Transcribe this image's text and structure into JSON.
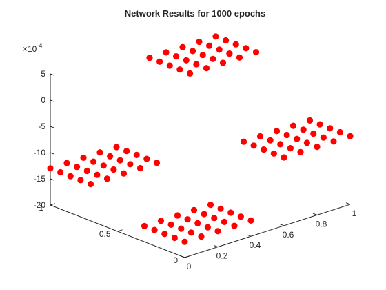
{
  "chart_data": {
    "type": "scatter",
    "title": "Network Results for 1000 epochs",
    "xlabel": "",
    "ylabel": "",
    "zlabel": "",
    "z_exponent_label": "×10",
    "z_exponent_power": "-4",
    "marker_color": "#ff0000",
    "xlim": [
      0,
      1
    ],
    "ylim": [
      0,
      1
    ],
    "zlim": [
      -20,
      5
    ],
    "x_ticks": [
      "0",
      "0.2",
      "0.4",
      "0.6",
      "0.8",
      "1"
    ],
    "x_tick_values": [
      0,
      0.2,
      0.4,
      0.6,
      0.8,
      1
    ],
    "y_ticks": [
      "0",
      "0.5",
      "1"
    ],
    "y_tick_values": [
      0,
      0.5,
      1
    ],
    "z_ticks": [
      "5",
      "0",
      "-5",
      "-10",
      "-15",
      "-20"
    ],
    "z_tick_values": [
      5,
      0,
      -5,
      -10,
      -15,
      -20
    ],
    "grid": false,
    "clusters": [
      {
        "x_center": 0.2,
        "y_center": 0.15,
        "x_values": [
          0,
          0.1,
          0.2,
          0.3,
          0.4
        ],
        "y_values": [
          0,
          0.075,
          0.15,
          0.225,
          0.3
        ],
        "z_values": [
          [
            -17,
            -17,
            -17,
            -17,
            -17
          ],
          [
            -17,
            -17,
            -17,
            -17,
            -17
          ],
          [
            -17,
            -17,
            -17,
            -17,
            -17
          ],
          [
            -17,
            -17,
            -17,
            -17,
            -17
          ],
          [
            -17,
            -17,
            -17,
            -17,
            -17
          ]
        ]
      },
      {
        "x_center": 0.2,
        "y_center": 0.85,
        "x_values": [
          0,
          0.1,
          0.2,
          0.3,
          0.4
        ],
        "y_values": [
          0.7,
          0.775,
          0.85,
          0.925,
          1
        ],
        "z_values": [
          [
            -13,
            -13,
            -13,
            -13,
            -13
          ],
          [
            -13,
            -13,
            -13,
            -13,
            -13
          ],
          [
            -13,
            -13,
            -13,
            -13,
            -13
          ],
          [
            -13,
            -13,
            -13,
            -13,
            -13
          ],
          [
            -13,
            -13,
            -13,
            -13,
            -13
          ]
        ]
      },
      {
        "x_center": 0.8,
        "y_center": 0.15,
        "x_values": [
          0.6,
          0.7,
          0.8,
          0.9,
          1
        ],
        "y_values": [
          0,
          0.075,
          0.15,
          0.225,
          0.3
        ],
        "z_values": [
          [
            -7,
            -7,
            -7,
            -7,
            -7
          ],
          [
            -7,
            -7,
            -7,
            -7,
            -7
          ],
          [
            -7,
            -7,
            -7,
            -7,
            -7
          ],
          [
            -7,
            -7,
            -7,
            -7,
            -7
          ],
          [
            -7,
            -7,
            -7,
            -7,
            -7
          ]
        ]
      },
      {
        "x_center": 0.8,
        "y_center": 0.85,
        "x_values": [
          0.6,
          0.7,
          0.8,
          0.9,
          1
        ],
        "y_values": [
          0.7,
          0.775,
          0.85,
          0.925,
          1
        ],
        "z_values": [
          [
            2,
            2,
            2,
            2,
            2
          ],
          [
            2,
            2,
            2,
            2,
            2
          ],
          [
            2,
            2,
            2,
            2,
            2
          ],
          [
            2,
            2,
            2,
            2,
            2
          ],
          [
            2,
            2,
            2,
            2,
            2
          ]
        ]
      }
    ]
  }
}
